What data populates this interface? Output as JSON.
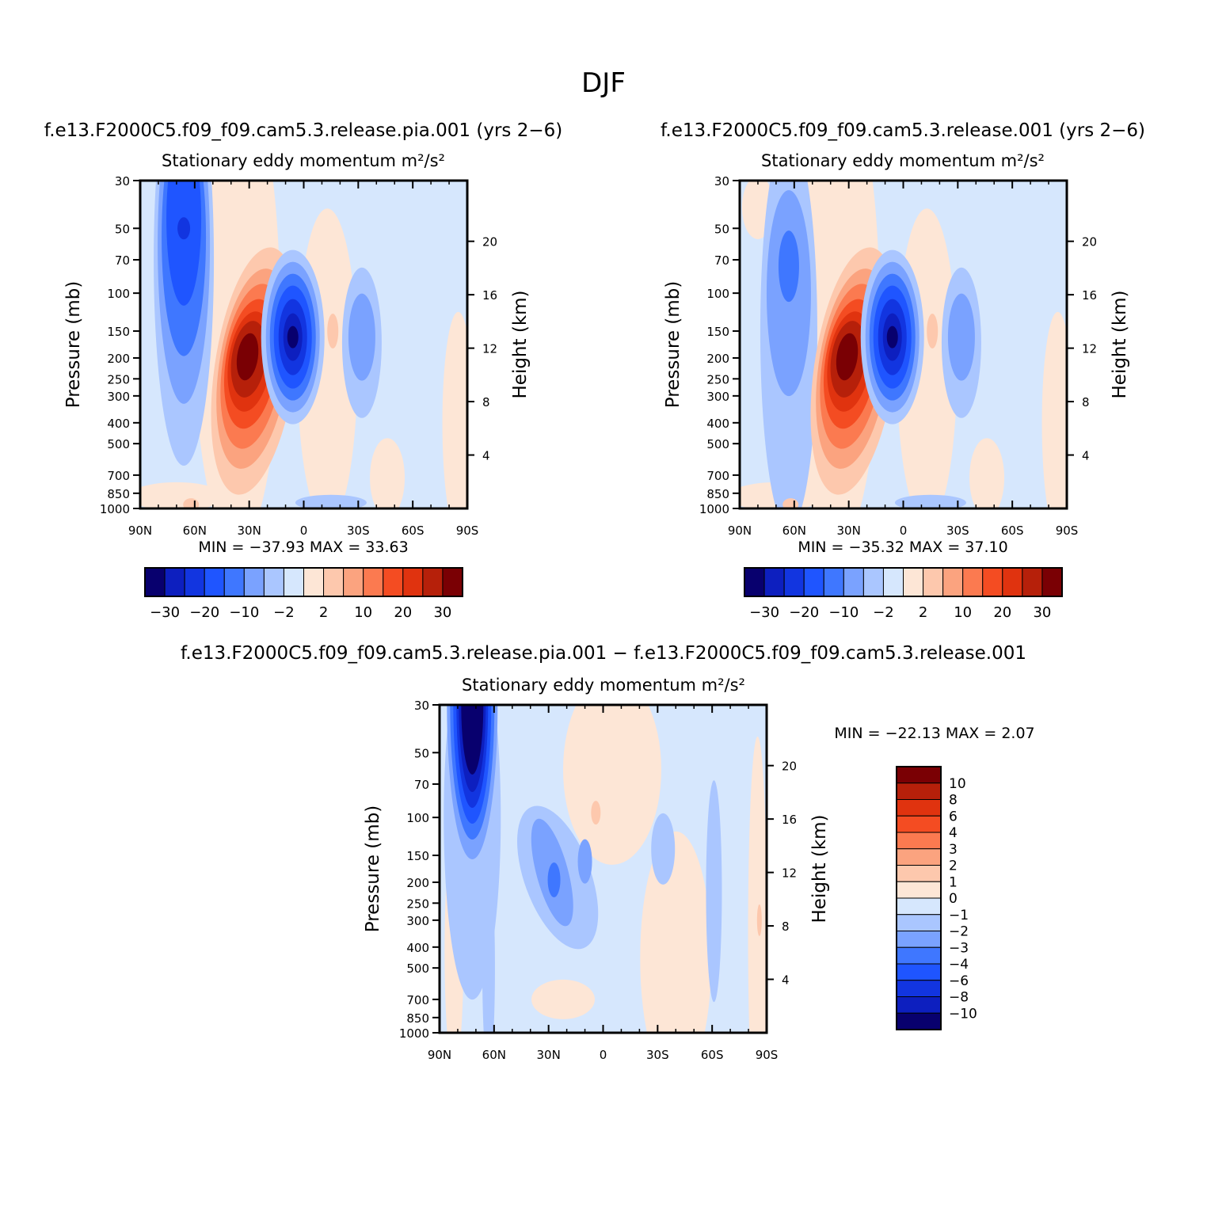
{
  "page_title": "DJF",
  "colors": {
    "full_palette": [
      "#08006e",
      "#0d1fbf",
      "#1235e0",
      "#1f55ff",
      "#3f77ff",
      "#7aa2ff",
      "#aac6ff",
      "#d6e7fd",
      "#fde6d6",
      "#fdc8ad",
      "#fba37f",
      "#fb7a50",
      "#f44c22",
      "#e0330f",
      "#b6200a",
      "#7a0004"
    ],
    "diff_palette": [
      "#08006e",
      "#0d1fbf",
      "#1235e0",
      "#1f55ff",
      "#3f77ff",
      "#7aa2ff",
      "#aac6ff",
      "#d6e7fd",
      "#fde6d6",
      "#fdc8ad",
      "#fba37f",
      "#fb7a50",
      "#f44c22",
      "#e0330f",
      "#b6200a",
      "#7a0004"
    ]
  },
  "panels": {
    "left": {
      "case_title": "f.e13.F2000C5.f09_f09.cam5.3.release.pia.001 (yrs 2−6)",
      "variable_title": "Stationary eddy momentum",
      "units": "m²/s²",
      "stats": "MIN = −37.93   MAX =   33.63"
    },
    "right": {
      "case_title": "f.e13.F2000C5.f09_f09.cam5.3.release.001 (yrs 2−6)",
      "variable_title": "Stationary eddy momentum",
      "units": "m²/s²",
      "stats": "MIN = −35.32   MAX =   37.10"
    },
    "diff": {
      "case_title": "f.e13.F2000C5.f09_f09.cam5.3.release.pia.001 − f.e13.F2000C5.f09_f09.cam5.3.release.001",
      "variable_title": "Stationary eddy momentum",
      "units": "m²/s²",
      "stats": "MIN = −22.13   MAX =    2.07"
    }
  },
  "axes": {
    "ylabel_left": "Pressure (mb)",
    "ylabel_right": "Height (km)"
  },
  "chart_data": [
    {
      "type": "heatmap",
      "id": "left",
      "title": "Stationary eddy momentum",
      "xlabel": "",
      "ylabel": "Pressure (mb)",
      "ylabel_right": "Height (km)",
      "x_ticks": [
        "90N",
        "60N",
        "30N",
        "0",
        "30S",
        "60S",
        "90S"
      ],
      "x_values": [
        90,
        60,
        30,
        0,
        -30,
        -60,
        -90
      ],
      "y_ticks": [
        "30",
        "50",
        "70",
        "100",
        "150",
        "200",
        "250",
        "300",
        "400",
        "500",
        "700",
        "850",
        "1000"
      ],
      "y_values": [
        30,
        50,
        70,
        100,
        150,
        200,
        250,
        300,
        400,
        500,
        700,
        850,
        1000
      ],
      "height_ticks": [
        "20",
        "16",
        "12",
        "8",
        "4"
      ],
      "height_values": [
        20,
        16,
        12,
        8,
        4
      ],
      "xlim": [
        90,
        -90
      ],
      "ylim": [
        1000,
        30
      ],
      "min": -37.93,
      "max": 33.63,
      "colorbar_labels": [
        "−30",
        "−20",
        "−10",
        "−2",
        "2",
        "10",
        "20",
        "30"
      ],
      "features": [
        {
          "lat": 66,
          "p": 50,
          "value": -30
        },
        {
          "lat": 28,
          "p": 220,
          "value": 33
        },
        {
          "lat": 6,
          "p": 150,
          "value": -35
        },
        {
          "lat": -32,
          "p": 150,
          "value": -8
        },
        {
          "lat": -16,
          "p": 150,
          "value": 6
        }
      ]
    },
    {
      "type": "heatmap",
      "id": "right",
      "title": "Stationary eddy momentum",
      "ylabel": "Pressure (mb)",
      "ylabel_right": "Height (km)",
      "x_ticks": [
        "90N",
        "60N",
        "30N",
        "0",
        "30S",
        "60S",
        "90S"
      ],
      "y_ticks": [
        "30",
        "50",
        "70",
        "100",
        "150",
        "200",
        "250",
        "300",
        "400",
        "500",
        "700",
        "850",
        "1000"
      ],
      "height_ticks": [
        "20",
        "16",
        "12",
        "8",
        "4"
      ],
      "min": -35.32,
      "max": 37.1,
      "colorbar_labels": [
        "−30",
        "−20",
        "−10",
        "−2",
        "2",
        "10",
        "20",
        "30"
      ],
      "features": [
        {
          "lat": 62,
          "p": 60,
          "value": -10
        },
        {
          "lat": 28,
          "p": 220,
          "value": 37
        },
        {
          "lat": 6,
          "p": 150,
          "value": -33
        },
        {
          "lat": -32,
          "p": 150,
          "value": -8
        },
        {
          "lat": -16,
          "p": 150,
          "value": 6
        }
      ]
    },
    {
      "type": "heatmap",
      "id": "diff",
      "title": "Stationary eddy momentum",
      "ylabel": "Pressure (mb)",
      "ylabel_right": "Height (km)",
      "x_ticks": [
        "90N",
        "60N",
        "30N",
        "0",
        "30S",
        "60S",
        "90S"
      ],
      "y_ticks": [
        "30",
        "50",
        "70",
        "100",
        "150",
        "200",
        "250",
        "300",
        "400",
        "500",
        "700",
        "850",
        "1000"
      ],
      "height_ticks": [
        "20",
        "16",
        "12",
        "8",
        "4"
      ],
      "min": -22.13,
      "max": 2.07,
      "colorbar_labels": [
        "10",
        "8",
        "6",
        "4",
        "3",
        "2",
        "1",
        "0",
        "−1",
        "−2",
        "−3",
        "−4",
        "−6",
        "−8",
        "−10"
      ],
      "features": [
        {
          "lat": 72,
          "p": 50,
          "value": -20
        },
        {
          "lat": 28,
          "p": 220,
          "value": -5
        },
        {
          "lat": -30,
          "p": 150,
          "value": -2
        },
        {
          "lat": 4,
          "p": 100,
          "value": 1.5
        }
      ]
    }
  ]
}
